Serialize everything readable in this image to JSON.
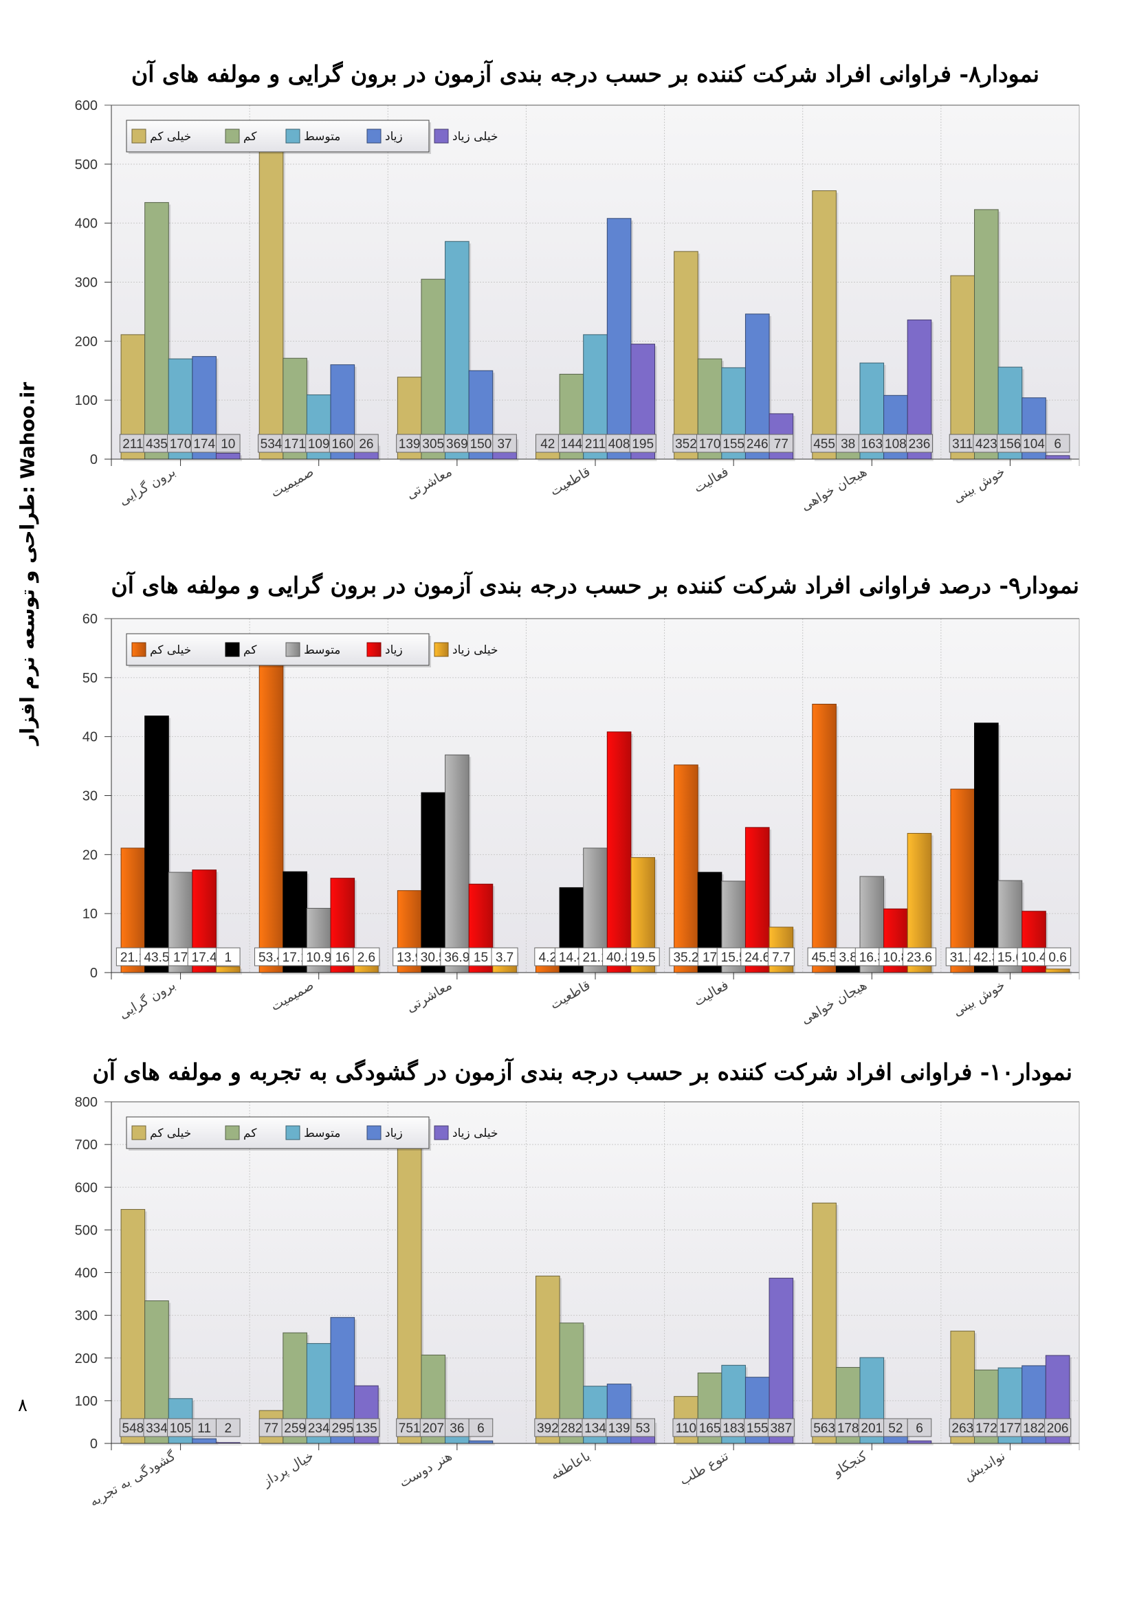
{
  "page": {
    "side_text": "طراحی و توسعه نرم افزار: Wahoo.ir",
    "page_number": "۸"
  },
  "chart_data": [
    {
      "type": "bar",
      "title": "نمودار۸- فراوانی افراد شرکت کننده بر حسب درجه بندی آزمون در برون گرایی و مولفه های آن",
      "xlabel": "",
      "ylabel": "",
      "ylim": [
        0,
        600
      ],
      "yticks": [
        0,
        100,
        200,
        300,
        400,
        500,
        600
      ],
      "grid": true,
      "legend_position": "top-left",
      "categories": [
        "برون گرایی",
        "صمیمیت",
        "معاشرتی",
        "قاطعیت",
        "فعالیت",
        "هیجان خواهی",
        "خوش بینی"
      ],
      "series": [
        {
          "name": "خیلی کم",
          "color": "#cdb867",
          "values": [
            211,
            534,
            139,
            42,
            352,
            455,
            311
          ]
        },
        {
          "name": "کم",
          "color": "#9cb382",
          "values": [
            435,
            171,
            305,
            144,
            170,
            38,
            423
          ]
        },
        {
          "name": "متوسط",
          "color": "#6ab1cc",
          "values": [
            170,
            109,
            369,
            211,
            155,
            163,
            156
          ]
        },
        {
          "name": "زیاد",
          "color": "#5f84d1",
          "values": [
            174,
            160,
            150,
            408,
            246,
            108,
            104
          ]
        },
        {
          "name": "خیلی زیاد",
          "color": "#7d6bc9",
          "values": [
            10,
            26,
            37,
            195,
            77,
            236,
            6
          ]
        }
      ]
    },
    {
      "type": "bar",
      "title": "نمودار۹- درصد فراوانی افراد شرکت کننده بر حسب درجه بندی آزمون در برون گرایی و مولفه های آن",
      "xlabel": "",
      "ylabel": "",
      "ylim": [
        0,
        60
      ],
      "yticks": [
        0,
        10,
        20,
        30,
        40,
        50,
        60
      ],
      "grid": true,
      "legend_position": "top-left",
      "categories": [
        "برون گرایی",
        "صمیمیت",
        "معاشرتی",
        "قاطعیت",
        "فعالیت",
        "هیجان خواهی",
        "خوش بینی"
      ],
      "series": [
        {
          "name": "خیلی کم",
          "color": "#ee6a10",
          "values": [
            21.1,
            53.4,
            13.9,
            4.2,
            35.2,
            45.5,
            31.1
          ]
        },
        {
          "name": "کم",
          "color": "#000000",
          "values": [
            43.5,
            17.1,
            30.5,
            14.4,
            17,
            3.8,
            42.3
          ]
        },
        {
          "name": "متوسط",
          "color": "#a8a8a8",
          "values": [
            17,
            10.9,
            36.9,
            21.1,
            15.5,
            16.3,
            15.6
          ]
        },
        {
          "name": "زیاد",
          "color": "#ee0a0a",
          "values": [
            17.4,
            16,
            15,
            40.8,
            24.6,
            10.8,
            10.4
          ]
        },
        {
          "name": "خیلی زیاد",
          "color": "#f0a828",
          "values": [
            1,
            2.6,
            3.7,
            19.5,
            7.7,
            23.6,
            0.6
          ]
        }
      ]
    },
    {
      "type": "bar",
      "title": "نمودار۱۰- فراوانی افراد شرکت کننده بر حسب درجه بندی آزمون در گشودگی به تجربه و مولفه های آن",
      "xlabel": "",
      "ylabel": "",
      "ylim": [
        0,
        800
      ],
      "yticks": [
        0,
        100,
        200,
        300,
        400,
        500,
        600,
        700,
        800
      ],
      "grid": true,
      "legend_position": "top-left",
      "categories": [
        "گشودگی به تجربه",
        "خیال پرداز",
        "هنر دوست",
        "باعاطفه",
        "تنوع طلب",
        "کنجکاو",
        "نواندیش"
      ],
      "series": [
        {
          "name": "خیلی کم",
          "color": "#cdb867",
          "values": [
            548,
            77,
            751,
            392,
            110,
            563,
            263
          ]
        },
        {
          "name": "کم",
          "color": "#9cb382",
          "values": [
            334,
            259,
            207,
            282,
            165,
            178,
            172
          ]
        },
        {
          "name": "متوسط",
          "color": "#6ab1cc",
          "values": [
            105,
            234,
            36,
            134,
            183,
            201,
            177
          ]
        },
        {
          "name": "زیاد",
          "color": "#5f84d1",
          "values": [
            11,
            295,
            6,
            139,
            155,
            52,
            182
          ]
        },
        {
          "name": "خیلی زیاد",
          "color": "#7d6bc9",
          "values": [
            2,
            135,
            0,
            53,
            387,
            6,
            206
          ]
        }
      ]
    }
  ]
}
